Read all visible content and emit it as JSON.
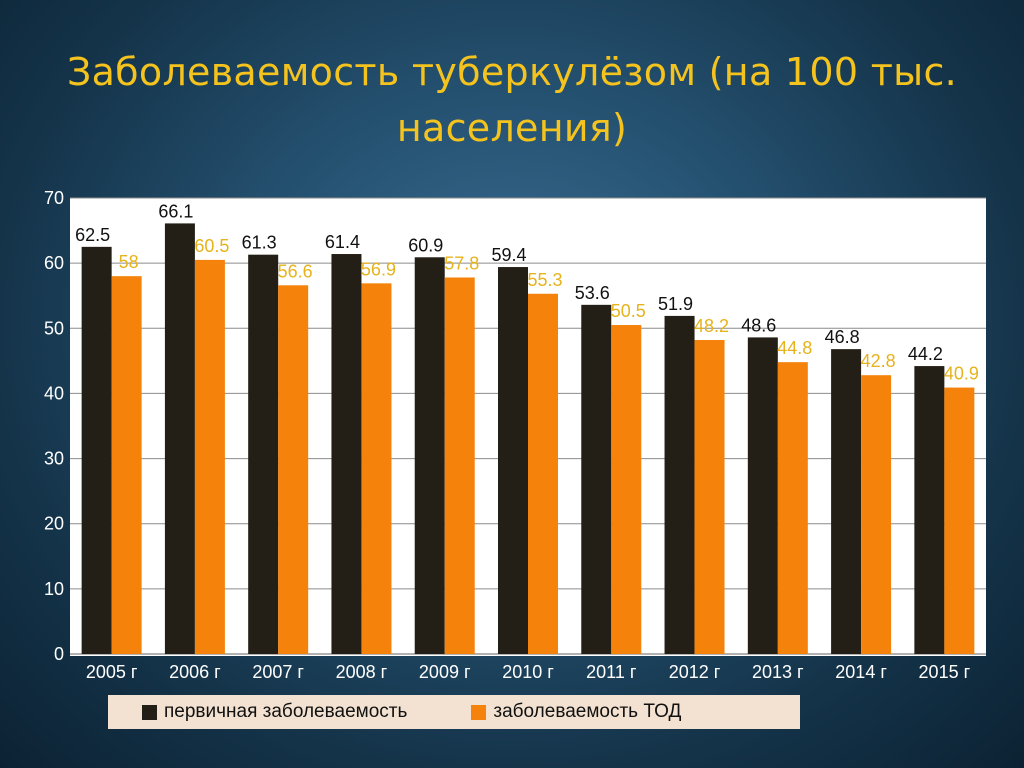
{
  "slide": {
    "title_line1": "Заболеваемость туберкулёзом (на 100 тыс.",
    "title_line2": "населения)"
  },
  "colors": {
    "title": "#f5c31d",
    "primary_series": "#231f16",
    "tod_series": "#f5820b",
    "tod_label": "#e6b31d",
    "gridline": "#8c8c8c",
    "legend_bg": "#f3e2d1"
  },
  "chart_data": {
    "type": "bar",
    "categories": [
      "2005 г",
      "2006 г",
      "2007 г",
      "2008 г",
      "2009 г",
      "2010 г",
      "2011 г",
      "2012 г",
      "2013 г",
      "2014 г",
      "2015 г"
    ],
    "series": [
      {
        "name": "первичная заболеваемость",
        "values": [
          62.5,
          66.1,
          61.3,
          61.4,
          60.9,
          59.4,
          53.6,
          51.9,
          48.6,
          46.8,
          44.2
        ],
        "color": "#231f16",
        "label_color": "#111111"
      },
      {
        "name": "заболеваемость ТОД",
        "values": [
          58,
          60.5,
          56.6,
          56.9,
          57.8,
          55.3,
          50.5,
          48.2,
          44.8,
          42.8,
          40.9
        ],
        "color": "#f5820b",
        "label_color": "#e6b31d"
      }
    ],
    "ylim": [
      0,
      70
    ],
    "yticks": [
      0,
      10,
      20,
      30,
      40,
      50,
      60,
      70
    ],
    "grid": true,
    "legend_position": "bottom",
    "data_labels": true
  }
}
